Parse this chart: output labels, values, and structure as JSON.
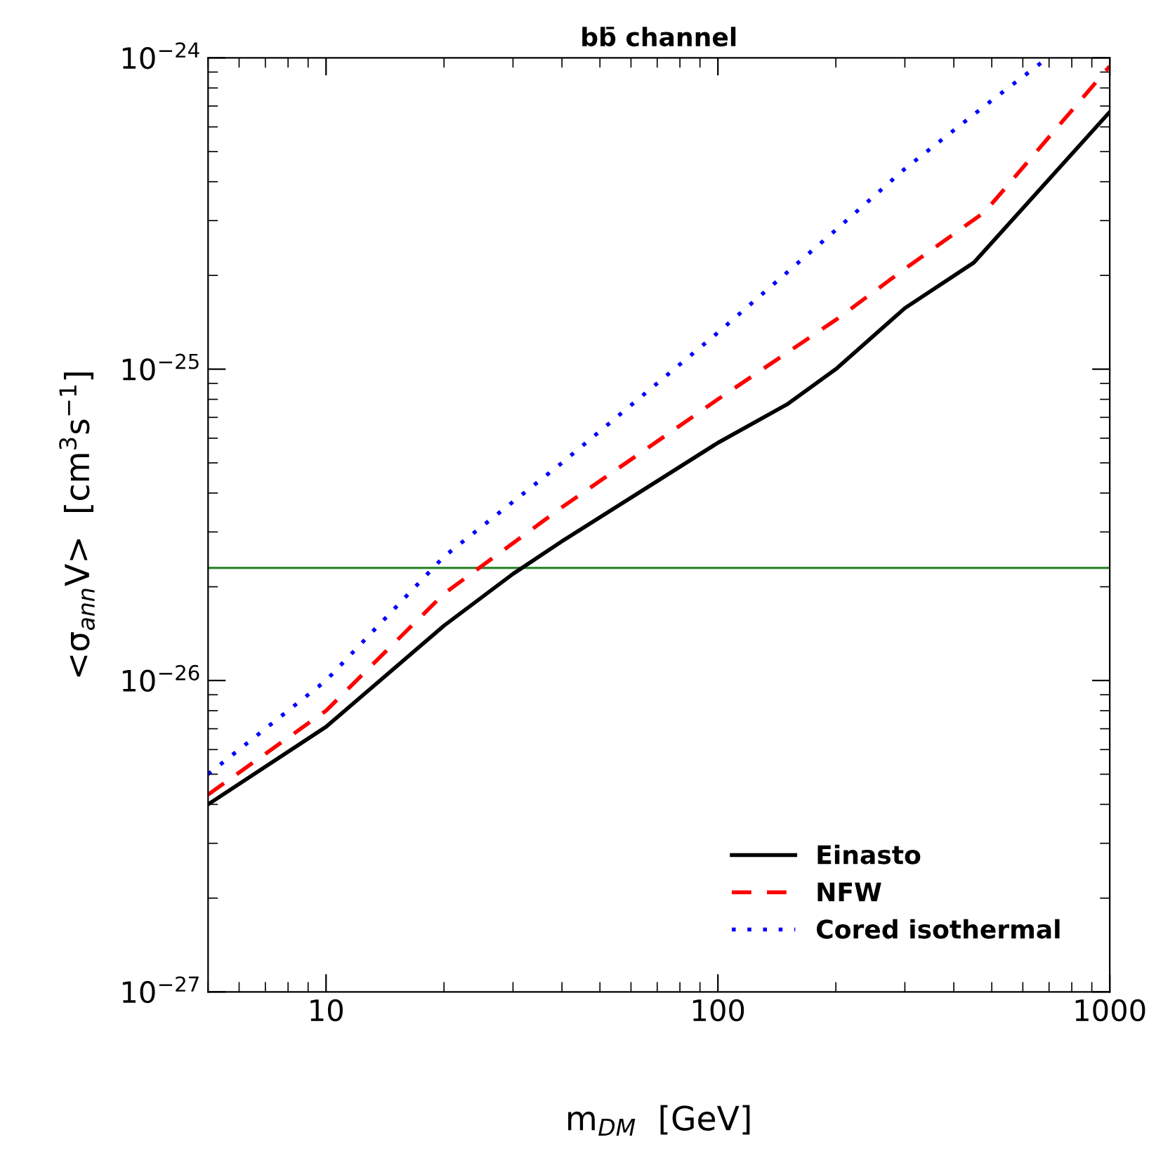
{
  "chart_data": {
    "type": "line",
    "title": "bb̄ channel",
    "xlabel": "m$_{DM}$  [GeV]",
    "ylabel": "<σ$_{ann}$V>  [cm$^{3}$s$^{−1}$]",
    "log": "xy",
    "xlim": [
      5,
      1000
    ],
    "ylim": [
      1e-27,
      1e-24
    ],
    "xticks": [
      10,
      100,
      1000
    ],
    "yticks": [
      {
        "value": 1e-27,
        "label": "10$^{−27}$"
      },
      {
        "value": 1e-26,
        "label": "10$^{−26}$"
      },
      {
        "value": 1e-25,
        "label": "10$^{−25}$"
      },
      {
        "value": 1e-24,
        "label": "10$^{−24}$"
      }
    ],
    "legend": "bottom right",
    "grid": false,
    "series": [
      {
        "name": "Einasto",
        "color": "#000000",
        "line_style": "solid",
        "x": [
          5,
          10,
          20,
          30,
          40,
          100,
          150,
          200,
          300,
          450,
          1000
        ],
        "values": [
          4e-27,
          7.1e-27,
          1.5e-26,
          2.2e-26,
          2.8e-26,
          5.8e-26,
          7.7e-26,
          1e-25,
          1.57e-25,
          2.2e-25,
          6.7e-25
        ]
      },
      {
        "name": "NFW",
        "color": "#ff0000",
        "line_style": "dashed",
        "x": [
          5,
          10,
          20,
          40,
          100,
          200,
          300,
          480,
          1000
        ],
        "values": [
          4.3e-27,
          8e-27,
          1.9e-26,
          3.6e-26,
          8e-26,
          1.44e-25,
          2.1e-25,
          3.2e-25,
          9.4e-25
        ]
      },
      {
        "name": "Cored isothermal",
        "color": "#0000ff",
        "line_style": "dotted",
        "x": [
          5,
          10,
          20,
          40,
          100,
          200,
          300,
          500,
          695
        ],
        "values": [
          5e-27,
          1e-26,
          2.5e-26,
          5e-26,
          1.31e-25,
          2.8e-25,
          4.4e-25,
          7.3e-25,
          1e-24
        ]
      }
    ],
    "ref_lines": [
      {
        "axis": "y",
        "value": 2.3e-26,
        "color": "#338833",
        "line_style": "solid"
      }
    ]
  }
}
